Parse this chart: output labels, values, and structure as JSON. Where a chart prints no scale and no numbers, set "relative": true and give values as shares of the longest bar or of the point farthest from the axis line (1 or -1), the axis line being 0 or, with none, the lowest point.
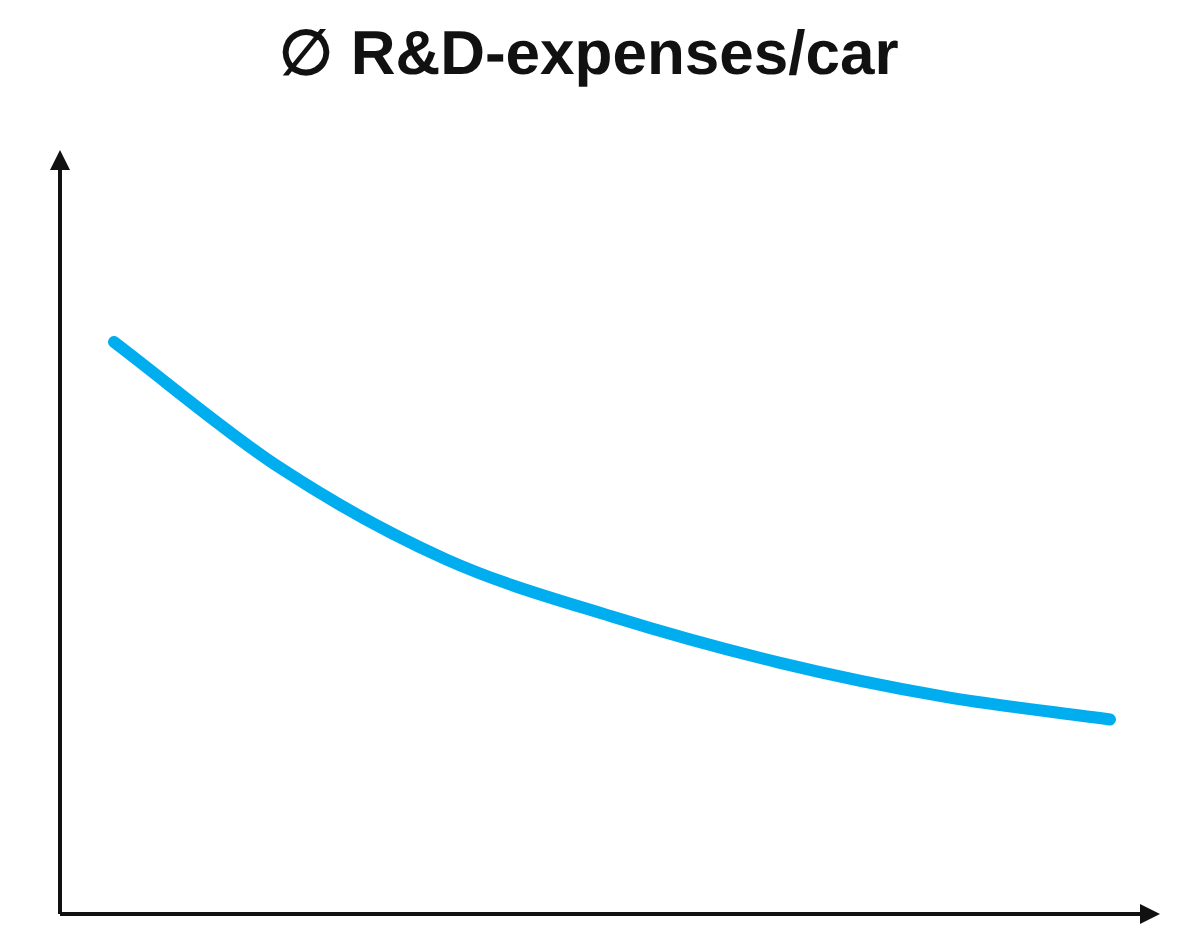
{
  "chart_data": {
    "type": "line",
    "title": "∅ R&D-expenses/car",
    "relative": true,
    "categories": [
      null,
      null,
      null,
      null,
      null,
      null,
      null
    ],
    "series": [
      {
        "color": "#00aeef",
        "values": [
          1,
          0.78,
          0.62,
          0.52,
          0.44,
          0.38,
          0.34
        ]
      }
    ],
    "marker": "none",
    "line_style": "solid",
    "legend": false
  }
}
